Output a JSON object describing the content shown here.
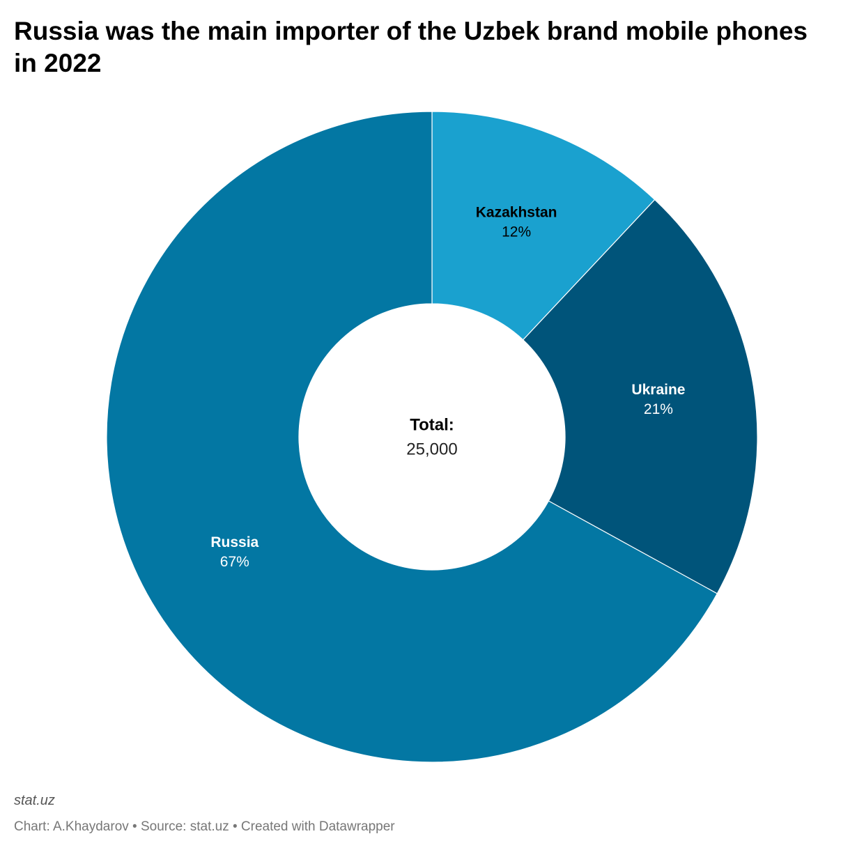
{
  "chart_data": {
    "type": "donut",
    "title": "Russia was the main importer of the Uzbek brand mobile phones in 2022",
    "categories": [
      "Kazakhstan",
      "Ukraine",
      "Russia"
    ],
    "values": [
      12,
      21,
      67
    ],
    "value_labels": [
      "12%",
      "21%",
      "67%"
    ],
    "colors": [
      "#1aa1cf",
      "#00547a",
      "#0377a3"
    ],
    "label_colors": [
      "#000000",
      "#ffffff",
      "#ffffff"
    ],
    "center_title": "Total:",
    "center_value": "25,000",
    "brand": "stat.uz",
    "credit": "Chart: A.Khaydarov • Source: stat.uz • Created with Datawrapper"
  }
}
